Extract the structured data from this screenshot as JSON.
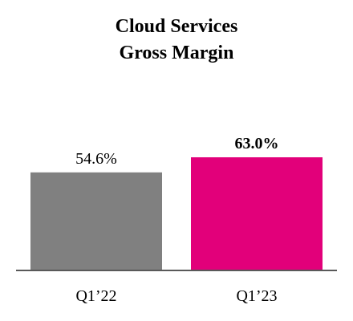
{
  "chart_data": {
    "type": "bar",
    "title_lines": [
      "Cloud Services",
      "Gross Margin"
    ],
    "categories": [
      "Q1’22",
      "Q1’23"
    ],
    "values": [
      54.6,
      63.0
    ],
    "value_labels": [
      "54.6%",
      "63.0%"
    ],
    "value_label_bold": [
      false,
      true
    ],
    "bar_colors": [
      "#808080",
      "#e2007a"
    ],
    "axis_color": "#595959",
    "xlabel": "",
    "ylabel": "",
    "ylim": [
      0,
      100
    ],
    "grid": false,
    "legend": "none"
  }
}
